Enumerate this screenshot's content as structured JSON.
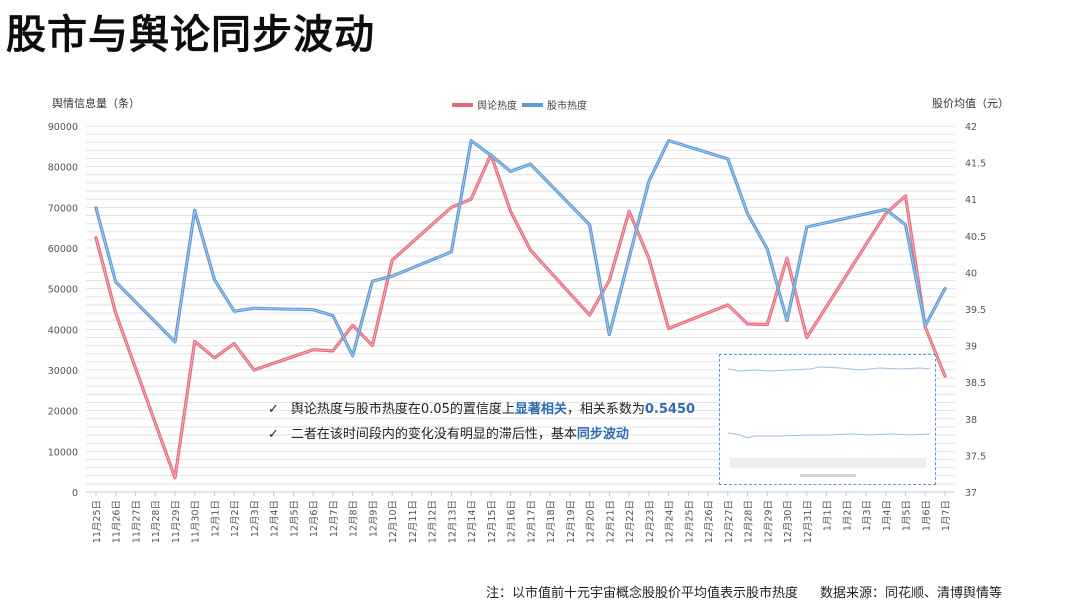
{
  "title": "股市与舆论同步波动",
  "footnote": {
    "note": "注：以市值前十元宇宙概念股股价平均值表示股市热度",
    "source": "数据来源：同花顺、清博舆情等"
  },
  "annotations": [
    {
      "pre": "舆论热度与股市热度在0.05的置信度上",
      "hl": "显著相关",
      "mid": "，相关系数为",
      "hl2": "0.5450"
    },
    {
      "pre": "二者在该时间段内的变化没有明显的滞后性，基本",
      "hl": "同步波动",
      "mid": "",
      "hl2": ""
    }
  ],
  "colors": {
    "opinion": "#e8697d",
    "stock": "#5b9bd5",
    "grid": "#e3e3e3",
    "highlight": "#2f6db3"
  },
  "chart_data": {
    "type": "line",
    "y_left_label": "舆情信息量（条）",
    "y_right_label": "股价均值（元）",
    "y_left_ticks": [
      "0",
      "10000",
      "20000",
      "30000",
      "40000",
      "50000",
      "60000",
      "70000",
      "80000",
      "90000"
    ],
    "y_right_ticks": [
      "37",
      "37.5",
      "38",
      "38.5",
      "39",
      "39.5",
      "40",
      "40.5",
      "41",
      "41.5",
      "42"
    ],
    "y_left_lim": [
      0,
      90000
    ],
    "y_right_lim": [
      37,
      42
    ],
    "grid": true,
    "legend_position": "top-center",
    "categories": [
      "11月25日",
      "11月26日",
      "11月27日",
      "11月28日",
      "11月29日",
      "11月30日",
      "12月1日",
      "12月2日",
      "12月3日",
      "12月4日",
      "12月5日",
      "12月6日",
      "12月7日",
      "12月8日",
      "12月9日",
      "12月10日",
      "12月11日",
      "12月12日",
      "12月13日",
      "12月14日",
      "12月15日",
      "12月16日",
      "12月17日",
      "12月18日",
      "12月19日",
      "12月20日",
      "12月21日",
      "12月22日",
      "12月23日",
      "12月24日",
      "12月25日",
      "12月26日",
      "12月27日",
      "12月28日",
      "12月29日",
      "12月30日",
      "12月31日",
      "1月1日",
      "1月2日",
      "1月3日",
      "1月4日",
      "1月5日",
      "1月6日",
      "1月7日"
    ],
    "series": [
      {
        "name": "舆论热度",
        "axis": "left",
        "points": [
          {
            "i": 0,
            "v": 62500
          },
          {
            "i": 1,
            "v": 44000
          },
          {
            "i": 4,
            "v": 3500
          },
          {
            "i": 5,
            "v": 37000
          },
          {
            "i": 6,
            "v": 33000
          },
          {
            "i": 7,
            "v": 36500
          },
          {
            "i": 8,
            "v": 30000
          },
          {
            "i": 11,
            "v": 35000
          },
          {
            "i": 12,
            "v": 34700
          },
          {
            "i": 13,
            "v": 41000
          },
          {
            "i": 14,
            "v": 36000
          },
          {
            "i": 15,
            "v": 57000
          },
          {
            "i": 18,
            "v": 70000
          },
          {
            "i": 19,
            "v": 72000
          },
          {
            "i": 20,
            "v": 83000
          },
          {
            "i": 21,
            "v": 69000
          },
          {
            "i": 22,
            "v": 59500
          },
          {
            "i": 25,
            "v": 43500
          },
          {
            "i": 26,
            "v": 52000
          },
          {
            "i": 27,
            "v": 69000
          },
          {
            "i": 28,
            "v": 57500
          },
          {
            "i": 29,
            "v": 40200
          },
          {
            "i": 32,
            "v": 46000
          },
          {
            "i": 33,
            "v": 41300
          },
          {
            "i": 34,
            "v": 41200
          },
          {
            "i": 35,
            "v": 57500
          },
          {
            "i": 36,
            "v": 38000
          },
          {
            "i": 40,
            "v": 68500
          },
          {
            "i": 41,
            "v": 72800
          },
          {
            "i": 42,
            "v": 40500
          },
          {
            "i": 43,
            "v": 28500
          }
        ]
      },
      {
        "name": "股市热度",
        "axis": "right",
        "points": [
          {
            "i": 0,
            "v": 40.88
          },
          {
            "i": 1,
            "v": 39.87
          },
          {
            "i": 4,
            "v": 39.05
          },
          {
            "i": 5,
            "v": 40.85
          },
          {
            "i": 6,
            "v": 39.9
          },
          {
            "i": 7,
            "v": 39.47
          },
          {
            "i": 8,
            "v": 39.51
          },
          {
            "i": 11,
            "v": 39.49
          },
          {
            "i": 12,
            "v": 39.41
          },
          {
            "i": 13,
            "v": 38.86
          },
          {
            "i": 14,
            "v": 39.88
          },
          {
            "i": 15,
            "v": 39.95
          },
          {
            "i": 18,
            "v": 40.28
          },
          {
            "i": 19,
            "v": 41.8
          },
          {
            "i": 20,
            "v": 41.6
          },
          {
            "i": 21,
            "v": 41.38
          },
          {
            "i": 22,
            "v": 41.48
          },
          {
            "i": 25,
            "v": 40.65
          },
          {
            "i": 26,
            "v": 39.15
          },
          {
            "i": 28,
            "v": 41.24
          },
          {
            "i": 29,
            "v": 41.8
          },
          {
            "i": 32,
            "v": 41.55
          },
          {
            "i": 33,
            "v": 40.8
          },
          {
            "i": 34,
            "v": 40.32
          },
          {
            "i": 35,
            "v": 39.34
          },
          {
            "i": 36,
            "v": 40.62
          },
          {
            "i": 40,
            "v": 40.86
          },
          {
            "i": 41,
            "v": 40.65
          },
          {
            "i": 42,
            "v": 39.27
          },
          {
            "i": 43,
            "v": 39.78
          }
        ]
      }
    ]
  }
}
